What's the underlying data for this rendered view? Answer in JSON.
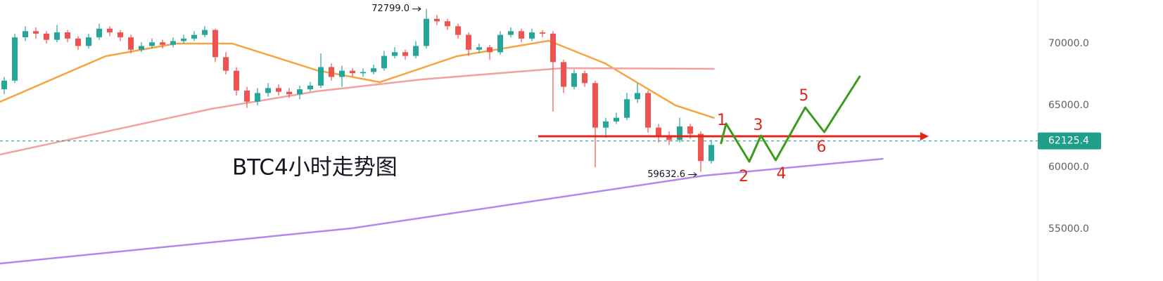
{
  "chart_data": {
    "type": "candlestick",
    "title": "BTC4小时走势图",
    "title_color": "#e3261c",
    "up_color": "#26a69a",
    "down_color": "#ef5350",
    "xlim": [
      -0.4,
      97.93
    ],
    "ylim": [
      50800,
      73520
    ],
    "yticks": [
      {
        "value": 55000,
        "label": "55000.0"
      },
      {
        "value": 60000,
        "label": "60000.0"
      },
      {
        "value": 65000,
        "label": "65000.0"
      },
      {
        "value": 70000,
        "label": "70000.0"
      }
    ],
    "open": [
      66300,
      67000,
      70500,
      71000,
      70800,
      70300,
      70900,
      70400,
      69800,
      70500,
      71200,
      70900,
      70500,
      69500,
      69800,
      70100,
      69900,
      70200,
      70400,
      70700,
      71100,
      68900,
      67800,
      66200,
      65300,
      66000,
      66400,
      66100,
      65900,
      66300,
      66600,
      68100,
      67300,
      67800,
      67600,
      67700,
      68000,
      69000,
      69300,
      69000,
      69800,
      72000,
      71800,
      71400,
      70700,
      69500,
      69700,
      69300,
      70700,
      71000,
      70400,
      70900,
      70800,
      68500,
      66500,
      67600,
      66800,
      63200,
      63700,
      64000,
      65500,
      66000,
      63200,
      62500,
      62200,
      63300,
      62700,
      60500
    ],
    "high": [
      67300,
      70800,
      71400,
      71300,
      71000,
      71500,
      71100,
      70600,
      70800,
      71600,
      71400,
      71100,
      70700,
      70100,
      70400,
      70300,
      70500,
      70700,
      71000,
      71400,
      71200,
      69300,
      68100,
      66500,
      66400,
      66800,
      66700,
      66400,
      66600,
      66900,
      69200,
      68400,
      68200,
      68000,
      68000,
      68300,
      69400,
      69700,
      69500,
      70200,
      72799,
      72300,
      72000,
      71600,
      70900,
      70000,
      69900,
      71000,
      71300,
      71200,
      71200,
      71100,
      71000,
      68700,
      67900,
      67800,
      67000,
      64000,
      64400,
      66000,
      66800,
      66200,
      63500,
      62900,
      64000,
      63500,
      62900,
      62200
    ],
    "low": [
      65900,
      66800,
      70200,
      70400,
      70000,
      70100,
      70100,
      69500,
      69600,
      70300,
      70600,
      70200,
      69200,
      69300,
      69600,
      69600,
      69700,
      70000,
      70200,
      70500,
      68500,
      67500,
      65800,
      64800,
      65000,
      65700,
      65800,
      65600,
      65500,
      66100,
      66400,
      67000,
      66500,
      67300,
      67300,
      67500,
      67800,
      68800,
      68700,
      68800,
      69600,
      71500,
      71100,
      70400,
      69000,
      69200,
      68700,
      69100,
      70500,
      70100,
      70200,
      70500,
      64500,
      66000,
      66300,
      66500,
      60000,
      62400,
      63500,
      63800,
      65200,
      62800,
      62000,
      61800,
      62000,
      62300,
      59632.6,
      60300
    ],
    "close": [
      67000,
      70500,
      71000,
      70800,
      70300,
      70900,
      70400,
      69800,
      70500,
      71200,
      70900,
      70500,
      69500,
      69800,
      70100,
      69900,
      70200,
      70400,
      70700,
      71100,
      68900,
      67800,
      66200,
      65300,
      66000,
      66400,
      66100,
      65900,
      66300,
      66600,
      68100,
      67300,
      67800,
      67600,
      67700,
      68000,
      69000,
      69300,
      69000,
      69800,
      72000,
      71800,
      71400,
      70700,
      69500,
      69700,
      69300,
      70700,
      71000,
      70400,
      70900,
      70800,
      68500,
      66500,
      67600,
      66800,
      63200,
      63700,
      64000,
      65500,
      66000,
      63200,
      62500,
      62200,
      63300,
      62700,
      60500,
      61800
    ],
    "lines": [
      {
        "color": "#f7a440",
        "x": [
          -0.4,
          9.6,
          16.27,
          21.6,
          29.6,
          35.6,
          42.9,
          51.6,
          56.9,
          63.6,
          67.3
        ],
        "values": [
          65284,
          68977,
          70000,
          70000,
          67841,
          66875,
          68977,
          70227,
          68409,
          65000,
          63977
        ]
      },
      {
        "color": "#f3a0a0",
        "x": [
          -0.4,
          19.6,
          29.6,
          39.6,
          52.9,
          67.3
        ],
        "values": [
          61023,
          64716,
          66136,
          67102,
          68011,
          67955
        ]
      },
      {
        "color": "#b388eb",
        "x": [
          -0.4,
          32.9,
          66.3,
          83.3
        ],
        "values": [
          52216,
          55057,
          59318,
          60682
        ]
      }
    ],
    "wave": {
      "color": "#3a9b1c",
      "label_color": "#e3261c",
      "x": [
        67.9,
        68.4,
        70.6,
        71.7,
        73.1,
        75.9,
        77.7,
        81.1
      ],
      "values": [
        61875,
        63523,
        60455,
        62557,
        60568,
        64830,
        62841,
        67386
      ],
      "labels": [
        "1",
        "2",
        "3",
        "4",
        "5",
        "6"
      ]
    },
    "support": {
      "color": "#e3261c",
      "value": 62500,
      "x": [
        50.6,
        87.6
      ]
    },
    "last_price": {
      "value": 62125.4,
      "color": "#1f9e8a"
    },
    "max_label": {
      "value": 72799,
      "label": "72799.0"
    },
    "min_label": 59632.6
  }
}
